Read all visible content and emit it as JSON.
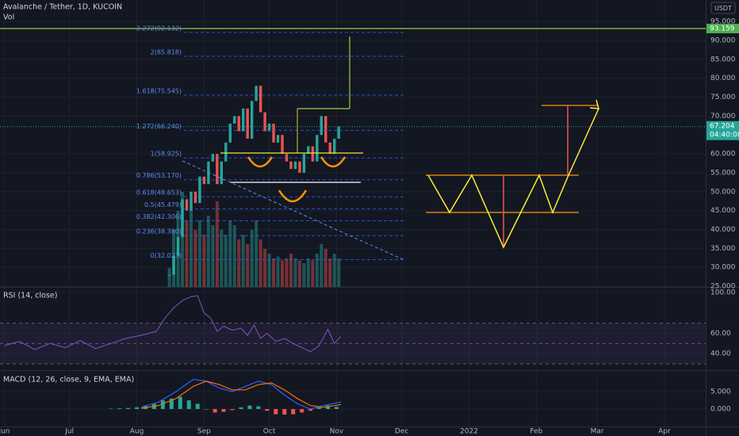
{
  "chart_data": [
    {
      "type": "candlestick",
      "title": "Avalanche / Tether, 1D, KUCOIN",
      "subtitle": "Vol",
      "currency": "USDT",
      "x": [
        227,
        229,
        231,
        233,
        235,
        237,
        239,
        241,
        243,
        245,
        247,
        249,
        251,
        253,
        255,
        257,
        259,
        261,
        263,
        265,
        267,
        269,
        271,
        273,
        275,
        277,
        279,
        281,
        283,
        285,
        287,
        289,
        291,
        293,
        295,
        297,
        299,
        301,
        303,
        305
      ],
      "values": [
        28,
        33,
        38,
        48,
        45,
        50,
        47,
        54,
        52,
        58,
        60,
        52,
        58,
        63,
        68,
        70,
        66,
        72,
        64,
        74,
        78,
        71,
        66,
        68,
        63,
        65,
        60,
        58,
        56,
        58,
        55,
        60,
        62,
        58,
        65,
        70,
        63,
        60,
        64,
        67.204
      ],
      "volume": [
        20,
        60,
        80,
        100,
        70,
        85,
        60,
        70,
        55,
        75,
        65,
        90,
        60,
        55,
        70,
        65,
        50,
        55,
        45,
        60,
        70,
        50,
        40,
        35,
        30,
        32,
        28,
        30,
        35,
        30,
        28,
        25,
        30,
        28,
        35,
        45,
        40,
        30,
        35,
        30
      ],
      "up_color": "#26a69a",
      "down_color": "#ef5350",
      "xlim": [
        149,
        474
      ],
      "xticks": [
        {
          "value": 151,
          "label": "Jun"
        },
        {
          "value": 181,
          "label": "Jul"
        },
        {
          "value": 212,
          "label": "Aug"
        },
        {
          "value": 243,
          "label": "Sep"
        },
        {
          "value": 273,
          "label": "Oct"
        },
        {
          "value": 304,
          "label": "Nov"
        },
        {
          "value": 334,
          "label": "Dec"
        },
        {
          "value": 365,
          "label": "2022"
        },
        {
          "value": 396,
          "label": "Feb"
        },
        {
          "value": 424,
          "label": "Mar"
        },
        {
          "value": 455,
          "label": "Apr"
        }
      ],
      "ylim": [
        24.8,
        100.7
      ],
      "yticks": [
        {
          "value": 25,
          "label": "25.000"
        },
        {
          "value": 30,
          "label": "30.000"
        },
        {
          "value": 35,
          "label": "35.000"
        },
        {
          "value": 40,
          "label": "40.000"
        },
        {
          "value": 45,
          "label": "45.000"
        },
        {
          "value": 50,
          "label": "50.000"
        },
        {
          "value": 55,
          "label": "55.000"
        },
        {
          "value": 60,
          "label": "60.000"
        },
        {
          "value": 70,
          "label": "70.000"
        },
        {
          "value": 75,
          "label": "75.000"
        },
        {
          "value": 80,
          "label": "80.000"
        },
        {
          "value": 85,
          "label": "85.000"
        },
        {
          "value": 90,
          "label": "90.000"
        },
        {
          "value": 95,
          "label": "95.000"
        }
      ],
      "fib": [
        {
          "value": 92.132,
          "label": "2.272(92.132)"
        },
        {
          "value": 85.818,
          "label": "2(85.818)"
        },
        {
          "value": 75.545,
          "label": "1.618(75.545)"
        },
        {
          "value": 66.24,
          "label": "1.272(66.240)"
        },
        {
          "value": 58.925,
          "label": "1(58.925)"
        },
        {
          "value": 53.17,
          "label": "0.786(53.170)"
        },
        {
          "value": 48.653,
          "label": "0.618(48.653)"
        },
        {
          "value": 45.479,
          "label": "0.5(45.479)"
        },
        {
          "value": 42.306,
          "label": "0.382(42.306)"
        },
        {
          "value": 38.38,
          "label": "0.236(38.380)"
        },
        {
          "value": 32.023,
          "label": "0(32.023)"
        }
      ],
      "level": 93.159,
      "countdown": "04:40:08"
    },
    {
      "type": "line",
      "title": "RSI (14, close)",
      "color": "#7e57c2",
      "x": [
        151,
        158,
        165,
        172,
        179,
        186,
        193,
        200,
        207,
        214,
        221,
        225,
        229,
        233,
        237,
        240,
        243,
        246,
        249,
        252,
        256,
        260,
        263,
        266,
        269,
        272,
        276,
        280,
        284,
        288,
        292,
        296,
        300,
        303,
        306
      ],
      "values": [
        48,
        52,
        44,
        50,
        46,
        53,
        45,
        50,
        55,
        58,
        62,
        75,
        85,
        92,
        96,
        97,
        80,
        75,
        62,
        67,
        63,
        65,
        58,
        68,
        55,
        60,
        52,
        55,
        50,
        46,
        42,
        48,
        64,
        50,
        57
      ],
      "ylim": [
        23.8,
        104.7
      ],
      "yticks": [
        {
          "value": 100,
          "label": "100.00"
        },
        {
          "value": 60,
          "label": "60.00"
        },
        {
          "value": 40,
          "label": "40.00"
        }
      ],
      "bands": [
        70,
        50,
        30
      ]
    },
    {
      "type": "macd",
      "title": "MACD (12, 26, close, 9, EMA, EMA)",
      "series": [
        {
          "color": "#2962ff",
          "x": [
            214,
            222,
            230,
            238,
            244,
            250,
            256,
            262,
            268,
            274,
            280,
            286,
            292,
            298,
            306
          ],
          "values": [
            0.5,
            2,
            5,
            8.5,
            8,
            6,
            5,
            6.5,
            8,
            7,
            4,
            1.5,
            0,
            1,
            2
          ]
        },
        {
          "color": "#ff6d00",
          "x": [
            214,
            222,
            230,
            238,
            244,
            250,
            256,
            262,
            268,
            274,
            280,
            286,
            292,
            298,
            306
          ],
          "values": [
            0.2,
            1,
            3,
            6.5,
            8,
            7,
            5.5,
            5.5,
            7,
            7.5,
            5.5,
            3,
            1,
            0.5,
            1.3
          ]
        }
      ],
      "histogram": {
        "up_color": "#26a69a",
        "down_color": "#ef5350",
        "x": [
          200,
          204,
          208,
          212,
          216,
          220,
          224,
          228,
          232,
          236,
          240,
          244,
          248,
          252,
          256,
          260,
          264,
          268,
          272,
          276,
          280,
          284,
          288,
          292,
          296,
          300,
          304
        ],
        "values": [
          0.1,
          0.2,
          0.3,
          0.5,
          1,
          1.5,
          2.5,
          3,
          3.5,
          2.5,
          1.5,
          0,
          -1,
          -0.8,
          -0.3,
          0.5,
          1,
          0.8,
          -0.5,
          -1.5,
          -1.6,
          -1.5,
          -1,
          -0.5,
          0.5,
          1,
          0.6
        ]
      },
      "ylim": [
        -5,
        10.9
      ],
      "yticks": [
        {
          "value": 5,
          "label": "5.000"
        },
        {
          "value": 0,
          "label": "0.000"
        }
      ]
    }
  ]
}
